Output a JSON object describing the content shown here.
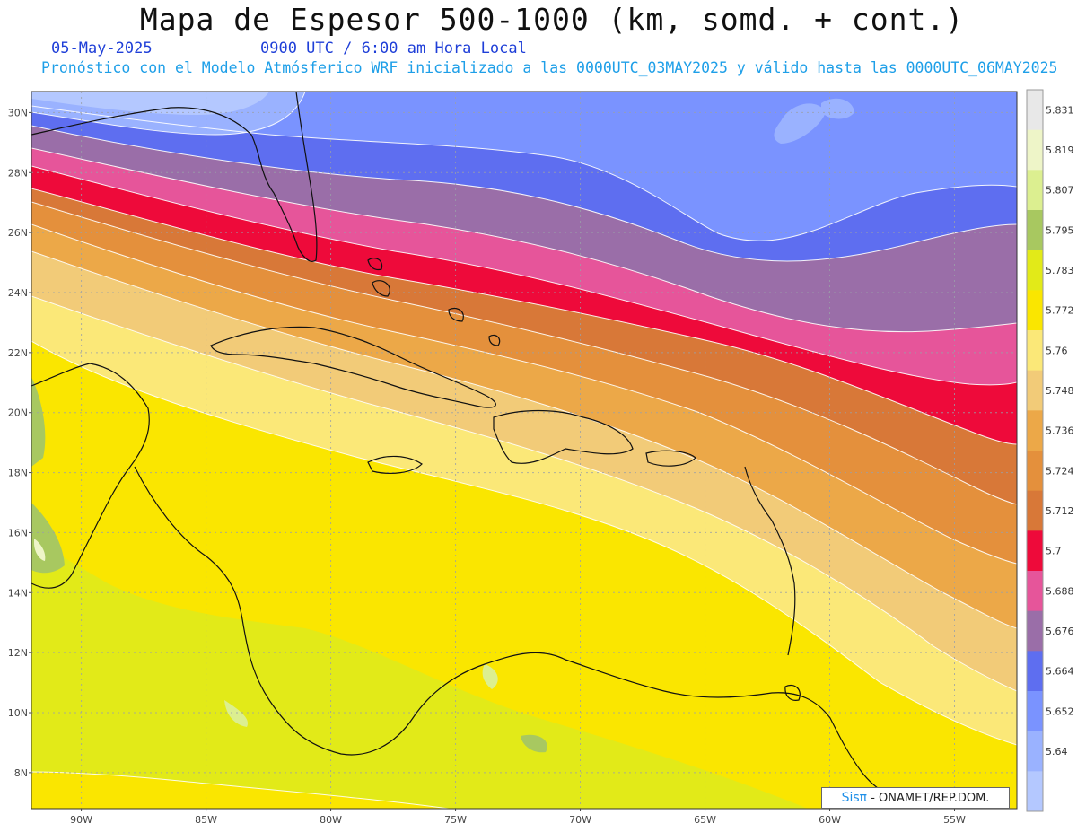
{
  "header": {
    "title": "Mapa de Espesor 500-1000 (km, somd. + cont.)",
    "date": "05-May-2025",
    "time": "0900 UTC / 6:00 am Hora Local",
    "subtitle": "Pronóstico con el Modelo Atmósferico WRF inicializado a las 0000UTC_03MAY2025 y válido hasta las  0000UTC_06MAY2025"
  },
  "map": {
    "lon_range": [
      -92,
      -52.5
    ],
    "lat_range": [
      6.8,
      30.7
    ],
    "lat_labels": [
      "30N",
      "28N",
      "26N",
      "24N",
      "22N",
      "20N",
      "18N",
      "16N",
      "14N",
      "12N",
      "10N",
      "8N"
    ],
    "lon_labels": [
      "90W",
      "85W",
      "80W",
      "75W",
      "70W",
      "65W",
      "60W",
      "55W"
    ],
    "gridlines": "dotted"
  },
  "colorbar": {
    "levels": [
      "5.831",
      "5.819",
      "5.807",
      "5.795",
      "5.783",
      "5.772",
      "5.76",
      "5.748",
      "5.736",
      "5.724",
      "5.712",
      "5.7",
      "5.688",
      "5.676",
      "5.664",
      "5.652",
      "5.64"
    ],
    "colors": [
      "#e8e8e8",
      "#eef5c8",
      "#dcef90",
      "#a8c860",
      "#e2ea18",
      "#fae600",
      "#fbe878",
      "#f2cb78",
      "#eca848",
      "#e4903c",
      "#d87838",
      "#ee0a3a",
      "#e6559a",
      "#9a6ea8",
      "#5e6ef0",
      "#7a93ff",
      "#9ab2ff",
      "#b4c8ff"
    ]
  },
  "credit": {
    "brand": "Sisπ",
    "org": " - ONAMET/REP.DOM."
  }
}
